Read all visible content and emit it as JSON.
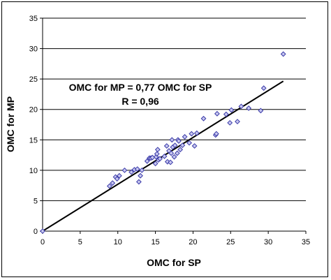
{
  "chart_data": {
    "type": "scatter",
    "title": "",
    "xlabel": "OMC for SP",
    "ylabel": "OMC for MP",
    "xlim": [
      0,
      35
    ],
    "ylim": [
      0,
      35
    ],
    "xticks": [
      0,
      5,
      10,
      15,
      20,
      25,
      30,
      35
    ],
    "yticks": [
      0,
      5,
      10,
      15,
      20,
      25,
      30,
      35
    ],
    "grid": "horizontal",
    "legend": "none",
    "marker_color": "#3a3aa8",
    "line_color": "#000000",
    "annotation": {
      "line1": "OMC for MP = 0,77  OMC for SP",
      "line2": "R = 0,96"
    },
    "trendline": {
      "x": [
        0,
        32
      ],
      "y": [
        0,
        24.64
      ]
    },
    "points": [
      [
        0,
        0
      ],
      [
        8.9,
        7.4
      ],
      [
        9.3,
        7.9
      ],
      [
        9.7,
        8.9
      ],
      [
        9.9,
        8.6
      ],
      [
        10.2,
        9.1
      ],
      [
        10.9,
        10.0
      ],
      [
        11.8,
        9.7
      ],
      [
        12.2,
        10.1
      ],
      [
        12.6,
        10.2
      ],
      [
        12.8,
        8.1
      ],
      [
        13.0,
        9.1
      ],
      [
        13.2,
        10.0
      ],
      [
        13.9,
        11.5
      ],
      [
        14.2,
        12.0
      ],
      [
        14.4,
        12.0
      ],
      [
        14.6,
        12.1
      ],
      [
        15.0,
        11.1
      ],
      [
        15.1,
        12.2
      ],
      [
        15.2,
        12.7
      ],
      [
        15.3,
        13.4
      ],
      [
        15.4,
        11.7
      ],
      [
        15.6,
        11.9
      ],
      [
        16.2,
        12.3
      ],
      [
        16.5,
        14.0
      ],
      [
        16.6,
        11.4
      ],
      [
        16.8,
        13.2
      ],
      [
        17.0,
        11.3
      ],
      [
        17.1,
        12.8
      ],
      [
        17.2,
        15.0
      ],
      [
        17.3,
        13.8
      ],
      [
        17.5,
        12.2
      ],
      [
        17.6,
        14.1
      ],
      [
        17.9,
        12.8
      ],
      [
        18.0,
        15.0
      ],
      [
        18.1,
        14.8
      ],
      [
        18.3,
        13.4
      ],
      [
        18.6,
        14.1
      ],
      [
        18.9,
        15.5
      ],
      [
        19.5,
        14.5
      ],
      [
        19.8,
        16.0
      ],
      [
        20.2,
        14.0
      ],
      [
        20.5,
        16.1
      ],
      [
        21.4,
        18.5
      ],
      [
        23.0,
        15.8
      ],
      [
        23.1,
        16.0
      ],
      [
        23.2,
        19.3
      ],
      [
        24.4,
        19.2
      ],
      [
        24.9,
        17.8
      ],
      [
        25.1,
        19.9
      ],
      [
        25.9,
        18.0
      ],
      [
        26.4,
        20.5
      ],
      [
        27.4,
        20.2
      ],
      [
        29.0,
        19.8
      ],
      [
        29.4,
        23.5
      ],
      [
        32.0,
        29.1
      ]
    ]
  }
}
